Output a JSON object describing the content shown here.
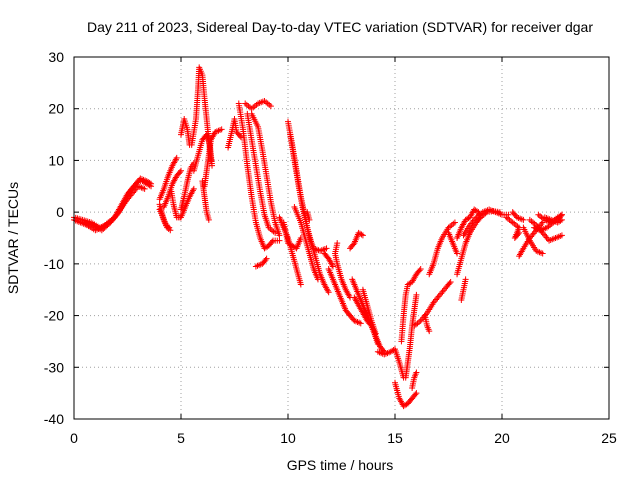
{
  "chart_data": {
    "type": "scatter",
    "title": "Day 211 of 2023, Sidereal Day-to-day VTEC variation (SDTVAR) for receiver dgar",
    "xlabel": "GPS time / hours",
    "ylabel": "SDTVAR / TECUs",
    "xlim": [
      0,
      25
    ],
    "ylim": [
      -40,
      30
    ],
    "xticks": [
      0,
      5,
      10,
      15,
      20,
      25
    ],
    "yticks": [
      -40,
      -30,
      -20,
      -10,
      0,
      10,
      20,
      30
    ],
    "grid": true,
    "marker": "+",
    "color": "#ff0000",
    "tracks": [
      [
        [
          0.0,
          -1.5
        ],
        [
          0.3,
          -2.0
        ],
        [
          0.6,
          -2.5
        ],
        [
          1.0,
          -3.5
        ],
        [
          1.3,
          -3.0
        ],
        [
          1.6,
          -2.0
        ],
        [
          1.9,
          -1.0
        ],
        [
          2.1,
          0.5
        ],
        [
          2.3,
          2.0
        ],
        [
          2.5,
          3.5
        ],
        [
          2.8,
          5.0
        ],
        [
          3.0,
          6.0
        ],
        [
          3.2,
          6.0
        ],
        [
          3.4,
          5.5
        ],
        [
          3.6,
          5.0
        ]
      ],
      [
        [
          0.0,
          -1.0
        ],
        [
          0.4,
          -1.5
        ],
        [
          0.8,
          -2.0
        ],
        [
          1.2,
          -3.0
        ],
        [
          1.5,
          -2.5
        ],
        [
          1.8,
          -1.5
        ],
        [
          2.1,
          0.0
        ],
        [
          2.4,
          2.0
        ],
        [
          2.6,
          4.0
        ],
        [
          2.9,
          5.5
        ],
        [
          3.1,
          6.5
        ],
        [
          3.4,
          6.0
        ],
        [
          3.6,
          5.5
        ]
      ],
      [
        [
          0.5,
          -2.0
        ],
        [
          0.9,
          -2.5
        ],
        [
          1.3,
          -3.5
        ],
        [
          1.7,
          -2.0
        ],
        [
          2.0,
          -0.5
        ],
        [
          2.3,
          1.5
        ],
        [
          2.7,
          3.5
        ],
        [
          3.0,
          5.0
        ],
        [
          3.3,
          4.5
        ]
      ],
      [
        [
          4.0,
          1.5
        ],
        [
          4.1,
          0.0
        ],
        [
          4.2,
          -1.5
        ],
        [
          4.35,
          -3.0
        ],
        [
          4.5,
          -3.5
        ]
      ],
      [
        [
          4.0,
          0.5
        ],
        [
          4.15,
          -1.0
        ],
        [
          4.3,
          -2.5
        ],
        [
          4.45,
          -3.0
        ]
      ],
      [
        [
          4.0,
          2.5
        ],
        [
          4.2,
          4.5
        ],
        [
          4.4,
          7.0
        ],
        [
          4.6,
          9.0
        ],
        [
          4.8,
          10.5
        ]
      ],
      [
        [
          4.2,
          1.0
        ],
        [
          4.4,
          3.0
        ],
        [
          4.6,
          5.5
        ],
        [
          4.8,
          7.0
        ],
        [
          5.0,
          8.0
        ]
      ],
      [
        [
          5.0,
          -1.0
        ],
        [
          5.2,
          1.0
        ],
        [
          5.4,
          3.0
        ],
        [
          5.6,
          4.5
        ]
      ],
      [
        [
          5.0,
          0.5
        ],
        [
          5.15,
          3.0
        ],
        [
          5.3,
          6.0
        ],
        [
          5.45,
          8.5
        ],
        [
          5.6,
          9.5
        ]
      ],
      [
        [
          5.5,
          13.0
        ],
        [
          5.7,
          18.0
        ],
        [
          5.8,
          24.0
        ],
        [
          5.85,
          28.0
        ],
        [
          6.0,
          26.5
        ],
        [
          6.1,
          22.0
        ],
        [
          6.2,
          18.0
        ],
        [
          6.3,
          14.0
        ],
        [
          6.4,
          10.0
        ]
      ],
      [
        [
          5.6,
          8.0
        ],
        [
          5.8,
          11.0
        ],
        [
          6.0,
          14.0
        ],
        [
          6.2,
          15.0
        ],
        [
          6.35,
          13.0
        ],
        [
          6.45,
          9.0
        ]
      ],
      [
        [
          6.0,
          6.0
        ],
        [
          6.1,
          3.0
        ],
        [
          6.2,
          0.0
        ],
        [
          6.3,
          -1.5
        ]
      ],
      [
        [
          6.1,
          5.0
        ],
        [
          6.2,
          8.0
        ],
        [
          6.3,
          11.0
        ],
        [
          6.4,
          14.0
        ],
        [
          6.6,
          15.5
        ],
        [
          6.9,
          16.0
        ]
      ],
      [
        [
          5.0,
          15.0
        ],
        [
          5.15,
          18.0
        ],
        [
          5.3,
          16.0
        ],
        [
          5.4,
          13.0
        ]
      ],
      [
        [
          4.55,
          4.0
        ],
        [
          4.65,
          1.5
        ],
        [
          4.8,
          -1.0
        ],
        [
          4.95,
          -1.0
        ]
      ],
      [
        [
          7.2,
          12.5
        ],
        [
          7.4,
          16.0
        ],
        [
          7.5,
          18.0
        ],
        [
          7.6,
          15.5
        ],
        [
          7.8,
          14.5
        ]
      ],
      [
        [
          7.7,
          21.0
        ],
        [
          7.9,
          16.0
        ],
        [
          8.1,
          9.0
        ],
        [
          8.3,
          3.0
        ],
        [
          8.5,
          -2.0
        ],
        [
          8.7,
          -5.0
        ],
        [
          8.9,
          -7.0
        ],
        [
          9.1,
          -6.5
        ],
        [
          9.3,
          -5.5
        ],
        [
          9.6,
          -5.5
        ]
      ],
      [
        [
          8.0,
          21.0
        ],
        [
          8.3,
          20.0
        ],
        [
          8.6,
          21.0
        ],
        [
          8.9,
          21.5
        ],
        [
          9.2,
          20.5
        ]
      ],
      [
        [
          8.1,
          19.0
        ],
        [
          8.3,
          14.0
        ],
        [
          8.5,
          9.0
        ],
        [
          8.7,
          4.0
        ],
        [
          8.9,
          -0.5
        ],
        [
          9.1,
          -3.0
        ],
        [
          9.4,
          -4.0
        ]
      ],
      [
        [
          8.3,
          19.0
        ],
        [
          8.6,
          16.5
        ],
        [
          8.8,
          12.0
        ],
        [
          9.0,
          7.0
        ],
        [
          9.2,
          2.0
        ],
        [
          9.4,
          -2.0
        ],
        [
          9.6,
          -4.5
        ]
      ],
      [
        [
          8.5,
          -10.5
        ],
        [
          8.8,
          -10.0
        ],
        [
          9.0,
          -9.0
        ]
      ],
      [
        [
          9.8,
          -2.0
        ],
        [
          9.9,
          -4.0
        ],
        [
          10.0,
          -6.0
        ],
        [
          10.2,
          -6.5
        ],
        [
          10.4,
          -7.0
        ],
        [
          10.6,
          -5.0
        ]
      ],
      [
        [
          10.0,
          17.5
        ],
        [
          10.2,
          13.0
        ],
        [
          10.4,
          8.0
        ],
        [
          10.6,
          3.0
        ],
        [
          10.8,
          -1.0
        ],
        [
          11.0,
          -5.0
        ],
        [
          11.2,
          -7.0
        ],
        [
          11.5,
          -7.5
        ],
        [
          11.8,
          -7.0
        ]
      ],
      [
        [
          10.1,
          15.0
        ],
        [
          10.3,
          10.0
        ],
        [
          10.5,
          5.0
        ],
        [
          10.7,
          0.5
        ],
        [
          10.9,
          -3.0
        ],
        [
          11.1,
          -6.0
        ],
        [
          11.3,
          -9.0
        ],
        [
          11.5,
          -12.0
        ],
        [
          11.7,
          -14.0
        ],
        [
          11.9,
          -15.5
        ]
      ],
      [
        [
          9.6,
          -1.0
        ],
        [
          9.8,
          -3.0
        ],
        [
          10.0,
          -5.0
        ],
        [
          10.2,
          -8.0
        ],
        [
          10.4,
          -11.0
        ],
        [
          10.6,
          -14.0
        ]
      ],
      [
        [
          10.3,
          1.0
        ],
        [
          10.6,
          -2.0
        ],
        [
          10.8,
          -5.0
        ],
        [
          11.0,
          -8.0
        ],
        [
          11.2,
          -11.0
        ],
        [
          11.4,
          -13.0
        ]
      ],
      [
        [
          10.9,
          0.0
        ],
        [
          11.0,
          -1.5
        ]
      ],
      [
        [
          11.9,
          -11.0
        ],
        [
          12.1,
          -13.0
        ],
        [
          12.3,
          -15.0
        ],
        [
          12.5,
          -17.0
        ],
        [
          12.7,
          -19.0
        ],
        [
          12.9,
          -20.0
        ],
        [
          13.1,
          -21.0
        ],
        [
          13.4,
          -21.5
        ]
      ],
      [
        [
          11.7,
          -8.0
        ],
        [
          11.9,
          -9.0
        ],
        [
          12.1,
          -10.5
        ]
      ],
      [
        [
          12.3,
          -6.0
        ],
        [
          12.2,
          -8.0
        ],
        [
          12.3,
          -10.0
        ],
        [
          12.5,
          -13.0
        ],
        [
          12.7,
          -15.0
        ],
        [
          12.9,
          -16.5
        ]
      ],
      [
        [
          12.9,
          -7.0
        ],
        [
          13.1,
          -6.0
        ],
        [
          13.3,
          -4.0
        ],
        [
          13.5,
          -4.5
        ]
      ],
      [
        [
          13.0,
          -13.0
        ],
        [
          13.2,
          -15.0
        ],
        [
          13.4,
          -17.0
        ],
        [
          13.6,
          -19.0
        ],
        [
          13.8,
          -21.0
        ],
        [
          14.0,
          -23.0
        ],
        [
          14.2,
          -25.5
        ]
      ],
      [
        [
          13.1,
          -16.5
        ],
        [
          13.3,
          -18.0
        ],
        [
          13.5,
          -19.5
        ],
        [
          13.7,
          -21.0
        ],
        [
          13.9,
          -22.0
        ],
        [
          14.1,
          -24.0
        ],
        [
          14.3,
          -26.0
        ],
        [
          14.5,
          -27.0
        ]
      ],
      [
        [
          13.5,
          -15.0
        ],
        [
          13.7,
          -18.0
        ],
        [
          13.9,
          -21.0
        ],
        [
          14.1,
          -23.5
        ]
      ],
      [
        [
          14.2,
          -27.0
        ],
        [
          14.5,
          -27.5
        ],
        [
          14.8,
          -27.0
        ],
        [
          15.0,
          -26.5
        ],
        [
          15.2,
          -29.0
        ],
        [
          15.4,
          -32.0
        ]
      ],
      [
        [
          15.0,
          -33.0
        ],
        [
          15.2,
          -36.0
        ],
        [
          15.4,
          -37.5
        ],
        [
          15.6,
          -37.0
        ],
        [
          15.8,
          -36.0
        ],
        [
          16.0,
          -35.0
        ]
      ],
      [
        [
          15.3,
          -25.0
        ],
        [
          15.4,
          -20.0
        ],
        [
          15.5,
          -16.0
        ],
        [
          15.6,
          -14.0
        ],
        [
          15.8,
          -13.5
        ],
        [
          16.0,
          -12.0
        ],
        [
          16.2,
          -11.0
        ]
      ],
      [
        [
          15.5,
          -32.0
        ],
        [
          15.6,
          -29.0
        ],
        [
          15.7,
          -26.0
        ],
        [
          15.8,
          -22.0
        ],
        [
          15.9,
          -19.0
        ],
        [
          16.0,
          -16.0
        ]
      ],
      [
        [
          15.8,
          -34.0
        ],
        [
          15.9,
          -32.0
        ],
        [
          16.0,
          -31.0
        ]
      ],
      [
        [
          15.9,
          -22.0
        ],
        [
          16.2,
          -21.0
        ],
        [
          16.5,
          -19.5
        ],
        [
          16.8,
          -17.5
        ],
        [
          17.1,
          -16.0
        ],
        [
          17.4,
          -14.5
        ],
        [
          17.6,
          -13.5
        ]
      ],
      [
        [
          16.4,
          -20.0
        ],
        [
          16.5,
          -22.0
        ],
        [
          16.6,
          -23.0
        ]
      ],
      [
        [
          16.6,
          -12.0
        ],
        [
          16.8,
          -10.0
        ],
        [
          17.0,
          -7.0
        ],
        [
          17.2,
          -5.0
        ],
        [
          17.5,
          -3.0
        ],
        [
          17.8,
          -2.0
        ]
      ],
      [
        [
          17.5,
          -4.0
        ],
        [
          17.7,
          -6.0
        ],
        [
          17.9,
          -8.0
        ]
      ],
      [
        [
          17.9,
          -5.0
        ],
        [
          18.1,
          -3.0
        ],
        [
          18.3,
          -1.5
        ],
        [
          18.5,
          -1.0
        ],
        [
          18.7,
          0.5
        ],
        [
          18.9,
          0.0
        ],
        [
          19.0,
          -1.0
        ]
      ],
      [
        [
          17.9,
          -12.0
        ],
        [
          18.1,
          -9.0
        ],
        [
          18.3,
          -6.0
        ],
        [
          18.5,
          -4.0
        ],
        [
          18.8,
          -2.0
        ],
        [
          19.0,
          -1.0
        ],
        [
          19.3,
          0.0
        ],
        [
          19.6,
          0.2
        ],
        [
          19.9,
          0.0
        ]
      ],
      [
        [
          18.1,
          -17.0
        ],
        [
          18.2,
          -15.0
        ],
        [
          18.3,
          -13.0
        ]
      ],
      [
        [
          18.2,
          -4.5
        ],
        [
          18.5,
          -2.5
        ],
        [
          18.8,
          -1.0
        ],
        [
          19.1,
          0.0
        ],
        [
          19.4,
          0.5
        ],
        [
          19.7,
          0.0
        ],
        [
          20.0,
          -0.5
        ],
        [
          20.3,
          -0.5
        ]
      ],
      [
        [
          20.2,
          -1.0
        ],
        [
          20.5,
          -2.0
        ],
        [
          20.8,
          -3.0
        ],
        [
          20.6,
          -5.0
        ],
        [
          20.8,
          -4.0
        ]
      ],
      [
        [
          20.5,
          0.0
        ],
        [
          20.7,
          -1.0
        ],
        [
          21.0,
          -1.5
        ]
      ],
      [
        [
          20.8,
          -8.5
        ],
        [
          21.0,
          -7.0
        ],
        [
          21.3,
          -5.0
        ],
        [
          21.6,
          -3.5
        ],
        [
          21.9,
          -2.0
        ]
      ],
      [
        [
          21.0,
          -3.0
        ],
        [
          21.3,
          -5.5
        ],
        [
          21.6,
          -7.5
        ],
        [
          21.9,
          -8.0
        ]
      ],
      [
        [
          21.7,
          -0.5
        ],
        [
          22.0,
          -1.5
        ],
        [
          22.3,
          -2.0
        ],
        [
          22.6,
          -1.0
        ],
        [
          22.8,
          -0.5
        ]
      ],
      [
        [
          21.3,
          -1.5
        ],
        [
          21.6,
          -2.5
        ],
        [
          21.9,
          -4.0
        ],
        [
          22.2,
          -5.5
        ],
        [
          22.5,
          -5.0
        ],
        [
          22.8,
          -4.5
        ]
      ],
      [
        [
          21.5,
          -3.0
        ],
        [
          21.8,
          -3.5
        ],
        [
          22.1,
          -3.0
        ],
        [
          22.4,
          -2.0
        ],
        [
          22.7,
          -1.0
        ],
        [
          22.8,
          -0.5
        ]
      ],
      [
        [
          22.0,
          -1.0
        ],
        [
          22.3,
          -1.5
        ],
        [
          22.6,
          -2.0
        ],
        [
          22.8,
          -1.5
        ]
      ]
    ]
  }
}
